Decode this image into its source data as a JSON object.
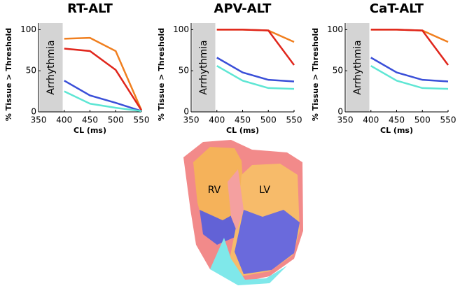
{
  "chart_data": [
    {
      "type": "line",
      "title": "RT-ALT",
      "xlabel": "CL (ms)",
      "ylabel": "% Tissue > Threshold",
      "annotation": "Arrhythmia",
      "annotation_range": [
        352,
        397
      ],
      "x": [
        400,
        450,
        500,
        550
      ],
      "xlim": [
        350,
        550
      ],
      "xticks": [
        350,
        400,
        450,
        500,
        550
      ],
      "ylim": [
        0,
        108
      ],
      "yticks": [
        0,
        50,
        100
      ],
      "series": [
        {
          "color": "#f07f1f",
          "values": [
            89,
            90,
            74,
            2
          ]
        },
        {
          "color": "#e0261c",
          "values": [
            77,
            74,
            51,
            2
          ]
        },
        {
          "color": "#3a4fd8",
          "values": [
            38,
            20,
            11,
            1
          ]
        },
        {
          "color": "#5ee6d4",
          "values": [
            25,
            10,
            5,
            1
          ]
        }
      ]
    },
    {
      "type": "line",
      "title": "APV-ALT",
      "xlabel": "CL (ms)",
      "ylabel": "% Tissue > Threshold",
      "annotation": "Arrhythmia",
      "annotation_range": [
        352,
        397
      ],
      "x": [
        400,
        450,
        500,
        550
      ],
      "xlim": [
        350,
        550
      ],
      "xticks": [
        350,
        400,
        450,
        500,
        550
      ],
      "ylim": [
        0,
        108
      ],
      "yticks": [
        0,
        50,
        100
      ],
      "series": [
        {
          "color": "#f07f1f",
          "values": [
            100,
            100,
            99,
            85
          ]
        },
        {
          "color": "#e0261c",
          "values": [
            100,
            100,
            99,
            57
          ]
        },
        {
          "color": "#3a4fd8",
          "values": [
            66,
            48,
            39,
            37
          ]
        },
        {
          "color": "#5ee6d4",
          "values": [
            56,
            38,
            29,
            28
          ]
        }
      ]
    },
    {
      "type": "line",
      "title": "CaT-ALT",
      "xlabel": "CL (ms)",
      "ylabel": "% Tissue > Threshold",
      "annotation": "Arrhythmia",
      "annotation_range": [
        352,
        397
      ],
      "x": [
        400,
        450,
        500,
        550
      ],
      "xlim": [
        350,
        550
      ],
      "xticks": [
        350,
        400,
        450,
        500,
        550
      ],
      "ylim": [
        0,
        108
      ],
      "yticks": [
        0,
        50,
        100
      ],
      "series": [
        {
          "color": "#f07f1f",
          "values": [
            100,
            100,
            99,
            85
          ]
        },
        {
          "color": "#e0261c",
          "values": [
            100,
            100,
            99,
            57
          ]
        },
        {
          "color": "#3a4fd8",
          "values": [
            66,
            48,
            39,
            37
          ]
        },
        {
          "color": "#5ee6d4",
          "values": [
            56,
            38,
            29,
            28
          ]
        }
      ]
    }
  ],
  "heart": {
    "labels": [
      "RV",
      "LV"
    ]
  }
}
